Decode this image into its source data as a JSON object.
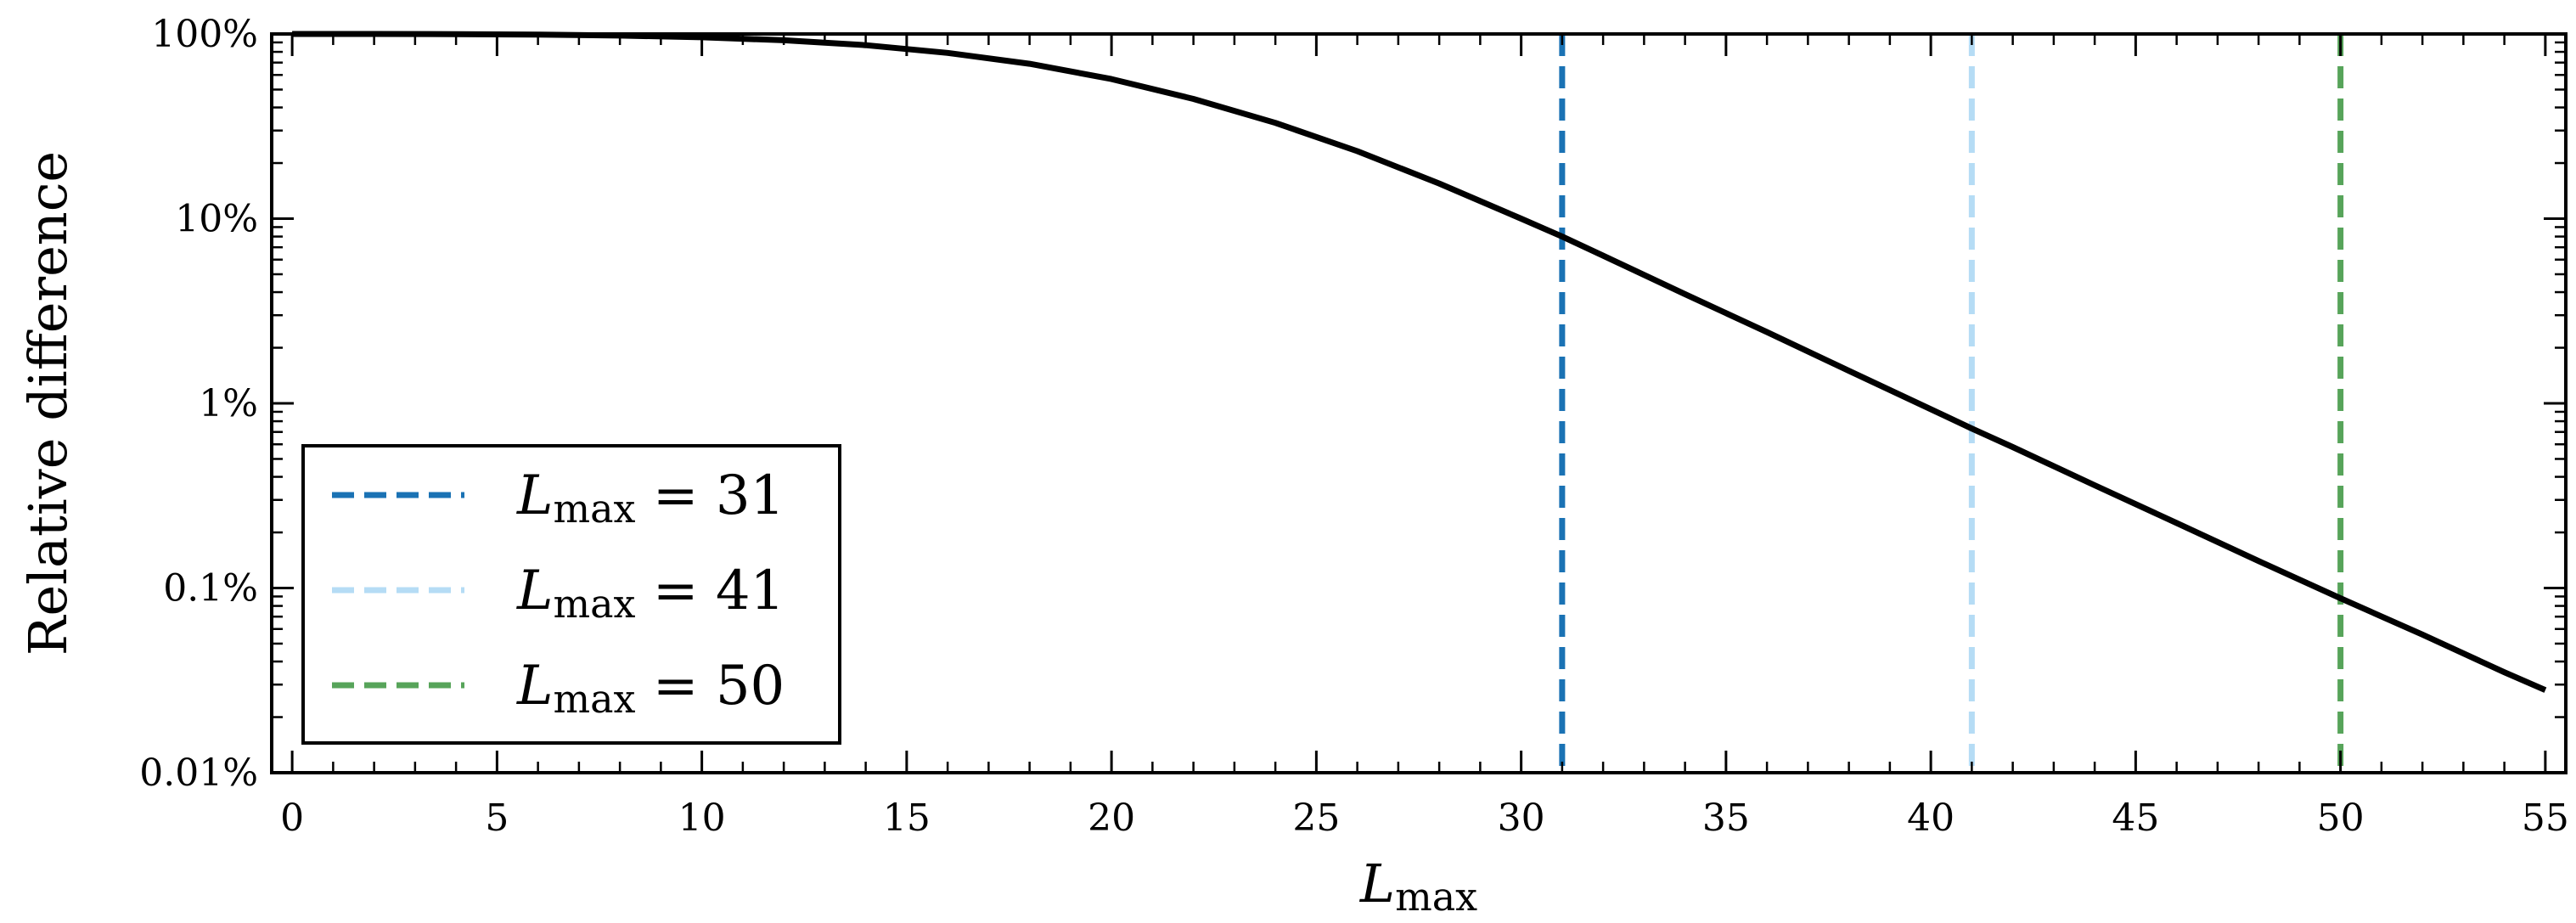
{
  "chart_data": {
    "type": "line",
    "title": "",
    "xlabel": {
      "main": "L",
      "sub": "max"
    },
    "ylabel": "Relative difference",
    "xlim": [
      -0.5,
      55.5
    ],
    "ylim": [
      0.0001,
      1.0
    ],
    "yscale": "log",
    "x_ticks": [
      0,
      5,
      10,
      15,
      20,
      25,
      30,
      35,
      40,
      45,
      50,
      55
    ],
    "x_tick_labels": [
      "0",
      "5",
      "10",
      "15",
      "20",
      "25",
      "30",
      "35",
      "40",
      "45",
      "50",
      "55"
    ],
    "y_ticks": [
      0.0001,
      0.001,
      0.01,
      0.1,
      1.0
    ],
    "y_tick_labels": [
      "0.01%",
      "0.1%",
      "1%",
      "10%",
      "100%"
    ],
    "grid": false,
    "legend_position": "lower-left",
    "series": [
      {
        "color": "#000000",
        "style": "solid",
        "x": [
          0,
          2,
          4,
          6,
          8,
          10,
          12,
          14,
          16,
          18,
          20,
          22,
          24,
          26,
          28,
          30,
          31,
          32,
          34,
          36,
          38,
          40,
          41,
          42,
          44,
          46,
          48,
          50,
          52,
          54,
          55
        ],
        "y": [
          0.9997,
          0.9995,
          0.998,
          0.993,
          0.98,
          0.96,
          0.925,
          0.87,
          0.79,
          0.69,
          0.57,
          0.445,
          0.33,
          0.232,
          0.155,
          0.1,
          0.08,
          0.063,
          0.039,
          0.0243,
          0.015,
          0.0093,
          0.0073,
          0.0058,
          0.0036,
          0.00225,
          0.0014,
          0.00088,
          0.00056,
          0.00035,
          0.00028
        ]
      }
    ],
    "vlines": [
      {
        "x": 31,
        "color": "#1a72b4",
        "style": "dashed",
        "legend": {
          "main": "L",
          "sub": "max",
          "rest": " = 31"
        }
      },
      {
        "x": 41,
        "color": "#b5dcf5",
        "style": "dashed",
        "legend": {
          "main": "L",
          "sub": "max",
          "rest": " = 41"
        }
      },
      {
        "x": 50,
        "color": "#57a45a",
        "style": "dashed",
        "legend": {
          "main": "L",
          "sub": "max",
          "rest": " = 50"
        }
      }
    ]
  }
}
